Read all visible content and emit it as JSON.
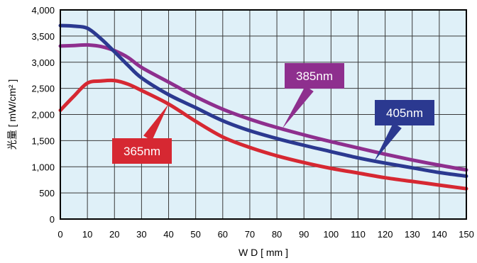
{
  "chart_data": {
    "type": "line",
    "xlabel": "W D [ mm ]",
    "ylabel": "光量 [ mW/cm² ]",
    "xlim": [
      0,
      150
    ],
    "ylim": [
      0,
      4000
    ],
    "x_ticks": [
      0,
      10,
      20,
      30,
      40,
      50,
      60,
      70,
      80,
      90,
      100,
      110,
      120,
      130,
      140,
      150
    ],
    "y_ticks": [
      "0",
      "500",
      "1,000",
      "1,500",
      "2,000",
      "2,500",
      "3,000",
      "3,500",
      "4,000"
    ],
    "grid": true,
    "plot_background": "#dff0f8",
    "series": [
      {
        "name": "365nm",
        "color": "#d62832",
        "x": [
          0,
          5,
          10,
          15,
          20,
          25,
          30,
          40,
          50,
          60,
          70,
          80,
          90,
          100,
          110,
          120,
          130,
          140,
          150
        ],
        "y": [
          2080,
          2350,
          2600,
          2640,
          2650,
          2580,
          2460,
          2200,
          1870,
          1570,
          1370,
          1210,
          1080,
          970,
          880,
          790,
          720,
          650,
          580
        ]
      },
      {
        "name": "385nm",
        "color": "#8e2f8e",
        "x": [
          0,
          5,
          10,
          15,
          20,
          25,
          30,
          40,
          50,
          60,
          70,
          80,
          90,
          100,
          110,
          120,
          130,
          140,
          150
        ],
        "y": [
          3310,
          3320,
          3330,
          3300,
          3220,
          3090,
          2900,
          2620,
          2340,
          2100,
          1910,
          1750,
          1610,
          1480,
          1360,
          1240,
          1130,
          1030,
          940
        ]
      },
      {
        "name": "405nm",
        "color": "#2b3990",
        "x": [
          0,
          5,
          10,
          15,
          20,
          25,
          30,
          40,
          50,
          60,
          70,
          80,
          90,
          100,
          110,
          120,
          130,
          140,
          150
        ],
        "y": [
          3700,
          3690,
          3650,
          3450,
          3200,
          2940,
          2700,
          2380,
          2130,
          1880,
          1690,
          1540,
          1410,
          1290,
          1170,
          1070,
          980,
          890,
          820
        ]
      }
    ],
    "annotations": [
      {
        "series": "365nm",
        "label": "365nm",
        "point_to": [
          40,
          2200
        ]
      },
      {
        "series": "385nm",
        "label": "385nm",
        "point_to": [
          82,
          1730
        ]
      },
      {
        "series": "405nm",
        "label": "405nm",
        "point_to": [
          116,
          1110
        ]
      }
    ]
  }
}
